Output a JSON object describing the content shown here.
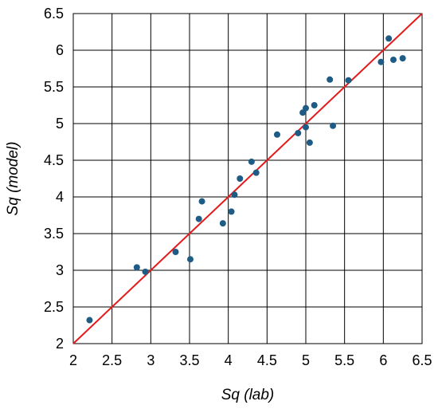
{
  "chart_data": {
    "type": "scatter",
    "xlabel": "Sq (lab)",
    "ylabel": "Sq (model)",
    "xlim": [
      2,
      6.5
    ],
    "ylim": [
      2,
      6.5
    ],
    "x_ticks": [
      "2",
      "2.5",
      "3",
      "3.5",
      "4",
      "4.5",
      "5",
      "5.5",
      "6",
      "6.5"
    ],
    "y_ticks": [
      "2",
      "2.5",
      "3",
      "3.5",
      "4",
      "4.5",
      "5",
      "5.5",
      "6",
      "6.5"
    ],
    "grid": true,
    "reference_line": {
      "type": "identity",
      "color": "#e31a1c"
    },
    "marker_color": "#1f5c85",
    "series": [
      {
        "points": [
          {
            "x": 2.21,
            "y": 2.32
          },
          {
            "x": 2.82,
            "y": 3.04
          },
          {
            "x": 2.93,
            "y": 2.98
          },
          {
            "x": 3.32,
            "y": 3.25
          },
          {
            "x": 3.51,
            "y": 3.15
          },
          {
            "x": 3.62,
            "y": 3.7
          },
          {
            "x": 3.66,
            "y": 3.94
          },
          {
            "x": 3.93,
            "y": 3.64
          },
          {
            "x": 4.04,
            "y": 3.8
          },
          {
            "x": 4.08,
            "y": 4.03
          },
          {
            "x": 4.15,
            "y": 4.25
          },
          {
            "x": 4.3,
            "y": 4.48
          },
          {
            "x": 4.36,
            "y": 4.33
          },
          {
            "x": 4.63,
            "y": 4.85
          },
          {
            "x": 4.9,
            "y": 4.87
          },
          {
            "x": 4.96,
            "y": 5.15
          },
          {
            "x": 5.0,
            "y": 5.21
          },
          {
            "x": 5.0,
            "y": 4.95
          },
          {
            "x": 5.05,
            "y": 4.74
          },
          {
            "x": 5.11,
            "y": 5.25
          },
          {
            "x": 5.31,
            "y": 5.6
          },
          {
            "x": 5.35,
            "y": 4.97
          },
          {
            "x": 5.55,
            "y": 5.59
          },
          {
            "x": 5.97,
            "y": 5.84
          },
          {
            "x": 6.07,
            "y": 6.16
          },
          {
            "x": 6.13,
            "y": 5.87
          },
          {
            "x": 6.25,
            "y": 5.89
          }
        ]
      }
    ]
  }
}
